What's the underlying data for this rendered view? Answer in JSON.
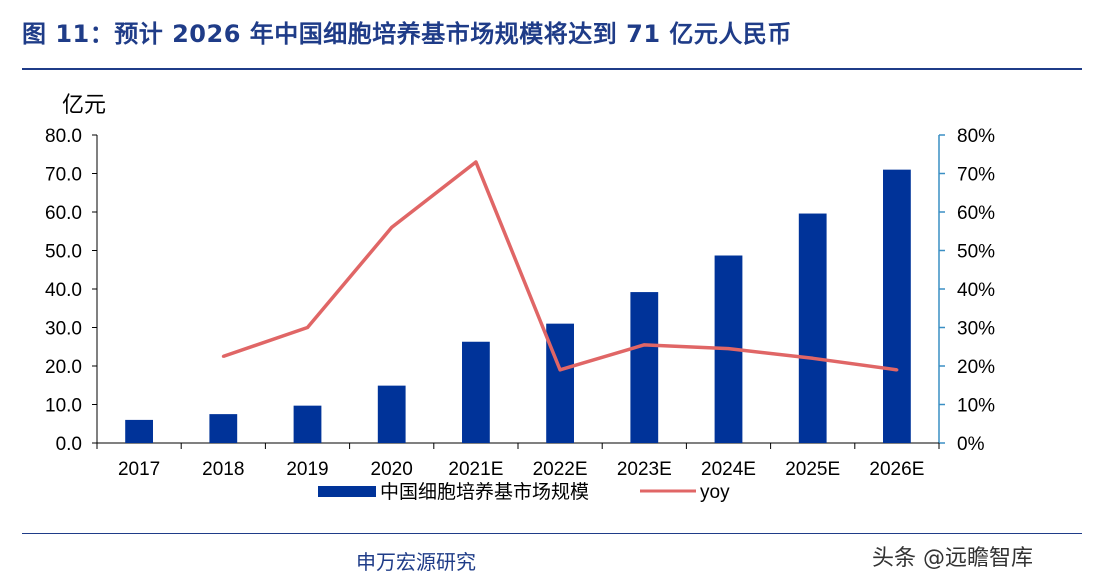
{
  "title": "图 11：预计 2026 年中国细胞培养基市场规模将达到 71 亿元人民币",
  "footer": {
    "source": "申万宏源研究",
    "watermark": "头条 @远瞻智库"
  },
  "colors": {
    "bar": "#003399",
    "line": "#e06666",
    "title": "#1f3c88",
    "axis_right": "#3a8fc4"
  },
  "chart_data": {
    "type": "bar",
    "categories": [
      "2017",
      "2018",
      "2019",
      "2020",
      "2021E",
      "2022E",
      "2023E",
      "2024E",
      "2025E",
      "2026E"
    ],
    "ylabel": "亿元",
    "ylim": [
      0,
      80
    ],
    "y_ticks": [
      "0.0",
      "10.0",
      "20.0",
      "30.0",
      "40.0",
      "50.0",
      "60.0",
      "70.0",
      "80.0"
    ],
    "y2lim": [
      0,
      80
    ],
    "y2_ticks": [
      "0%",
      "10%",
      "20%",
      "30%",
      "40%",
      "50%",
      "60%",
      "70%",
      "80%"
    ],
    "series": [
      {
        "name": "中国细胞培养基市场规模",
        "type": "bar",
        "axis": "left",
        "values": [
          6.0,
          7.5,
          9.7,
          14.9,
          26.3,
          31.0,
          39.2,
          48.7,
          59.6,
          71.0
        ]
      },
      {
        "name": "yoy",
        "type": "line",
        "axis": "right",
        "values": [
          null,
          22.5,
          30.0,
          56.0,
          73.0,
          19.0,
          25.5,
          24.5,
          22.0,
          19.0
        ]
      }
    ],
    "legend": "bottom-center",
    "grid": false
  }
}
